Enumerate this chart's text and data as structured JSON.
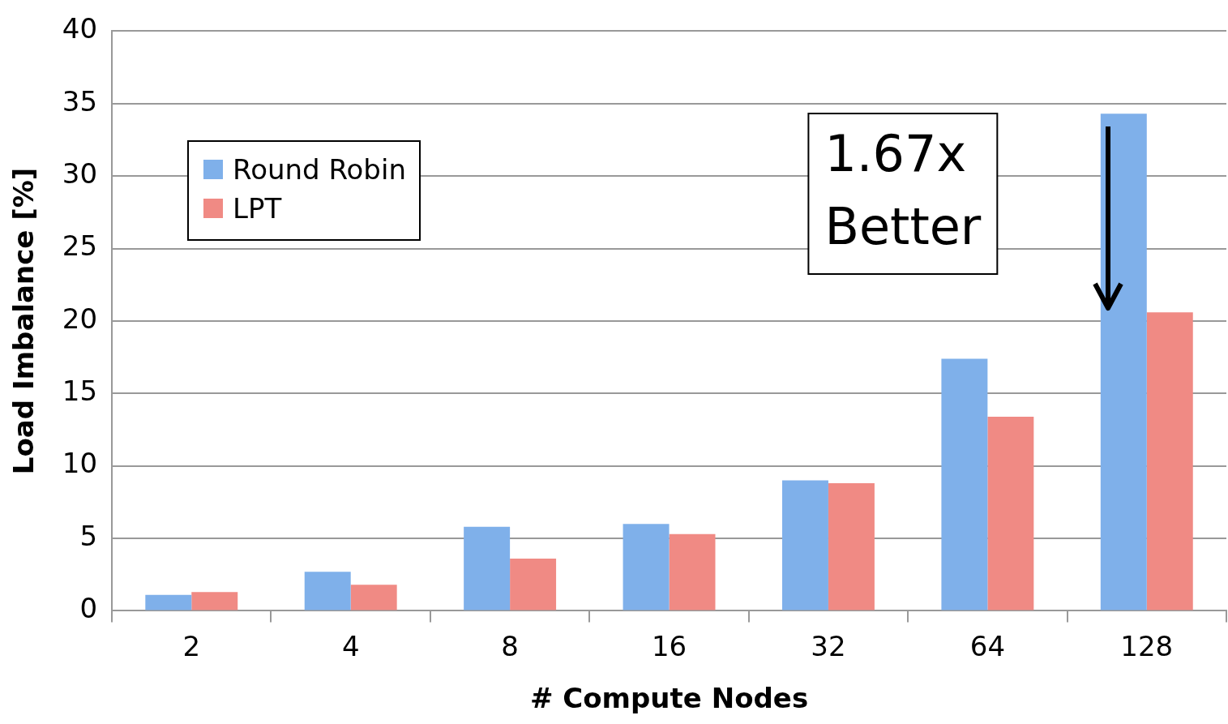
{
  "chart_data": {
    "type": "bar",
    "xlabel": "# Compute Nodes",
    "ylabel": "Load Imbalance [%]",
    "categories": [
      "2",
      "4",
      "8",
      "16",
      "32",
      "64",
      "128"
    ],
    "series": [
      {
        "name": "Round Robin",
        "color": "#7fb0ea",
        "values": [
          1.1,
          2.7,
          5.8,
          6.0,
          9.0,
          17.4,
          34.3
        ]
      },
      {
        "name": "LPT",
        "color": "#f08a84",
        "values": [
          1.3,
          1.8,
          3.6,
          5.3,
          8.8,
          13.4,
          20.6
        ]
      }
    ],
    "ylim": [
      0,
      40
    ],
    "yticks": [
      0,
      5,
      10,
      15,
      20,
      25,
      30,
      35,
      40
    ],
    "grid": "y",
    "legend": "top left",
    "annotations": [
      "1.67x Better"
    ]
  }
}
